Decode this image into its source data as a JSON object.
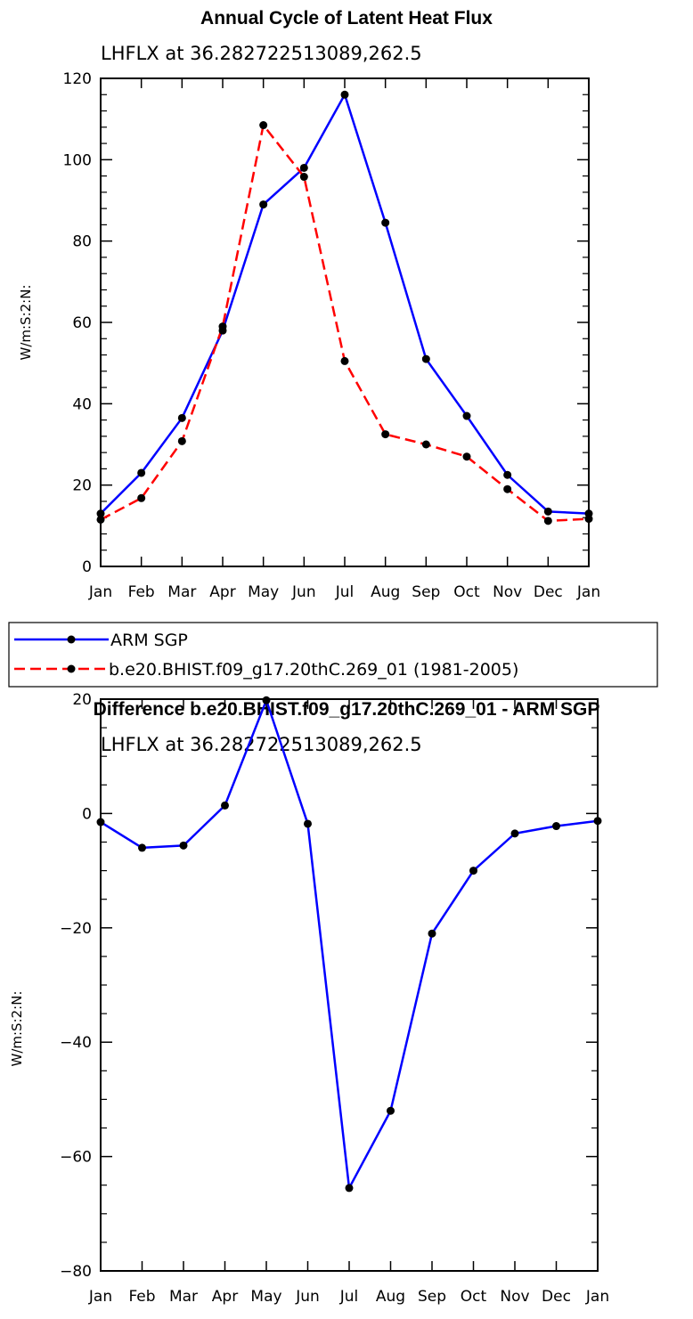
{
  "chart_data": [
    {
      "type": "line",
      "title": "Annual Cycle of Latent Heat Flux",
      "subtitle": "LHFLX at 36.282722513089,262.5",
      "ylabel": "W/m:S:2:N:",
      "xlabel": "",
      "ylim": [
        0,
        120
      ],
      "yticks": [
        0,
        20,
        40,
        60,
        80,
        100,
        120
      ],
      "categories": [
        "Jan",
        "Feb",
        "Mar",
        "Apr",
        "May",
        "Jun",
        "Jul",
        "Aug",
        "Sep",
        "Oct",
        "Nov",
        "Dec",
        "Jan"
      ],
      "series": [
        {
          "name": "ARM SGP",
          "color": "#0000ff",
          "dash": "solid",
          "values": [
            13,
            23,
            36.5,
            58,
            89,
            98,
            116,
            84.5,
            51,
            37,
            22.5,
            13.5,
            13
          ]
        },
        {
          "name": "b.e20.BHIST.f09_g17.20thC.269_01 (1981-2005)",
          "color": "#ff0000",
          "dash": "dashed",
          "values": [
            11.5,
            16.8,
            30.8,
            59,
            108.5,
            95.8,
            50.5,
            32.5,
            30,
            27,
            19,
            11.2,
            11.7
          ]
        }
      ],
      "legend": "bottom"
    },
    {
      "type": "line",
      "title": "Difference b.e20.BHIST.f09_g17.20thC.269_01 - ARM SGP",
      "subtitle": "LHFLX at 36.282722513089,262.5",
      "ylabel": "W/m:S:2:N:",
      "xlabel": "",
      "ylim": [
        -80,
        20
      ],
      "yticks": [
        -80,
        -60,
        -40,
        -20,
        0,
        20
      ],
      "categories": [
        "Jan",
        "Feb",
        "Mar",
        "Apr",
        "May",
        "Jun",
        "Jul",
        "Aug",
        "Sep",
        "Oct",
        "Nov",
        "Dec",
        "Jan"
      ],
      "series": [
        {
          "color": "#0000ff",
          "dash": "solid",
          "values": [
            -1.5,
            -6,
            -5.6,
            1.4,
            19.8,
            -1.8,
            -65.5,
            -52,
            -21,
            -10,
            -3.5,
            -2.2,
            -1.3
          ]
        }
      ]
    }
  ]
}
